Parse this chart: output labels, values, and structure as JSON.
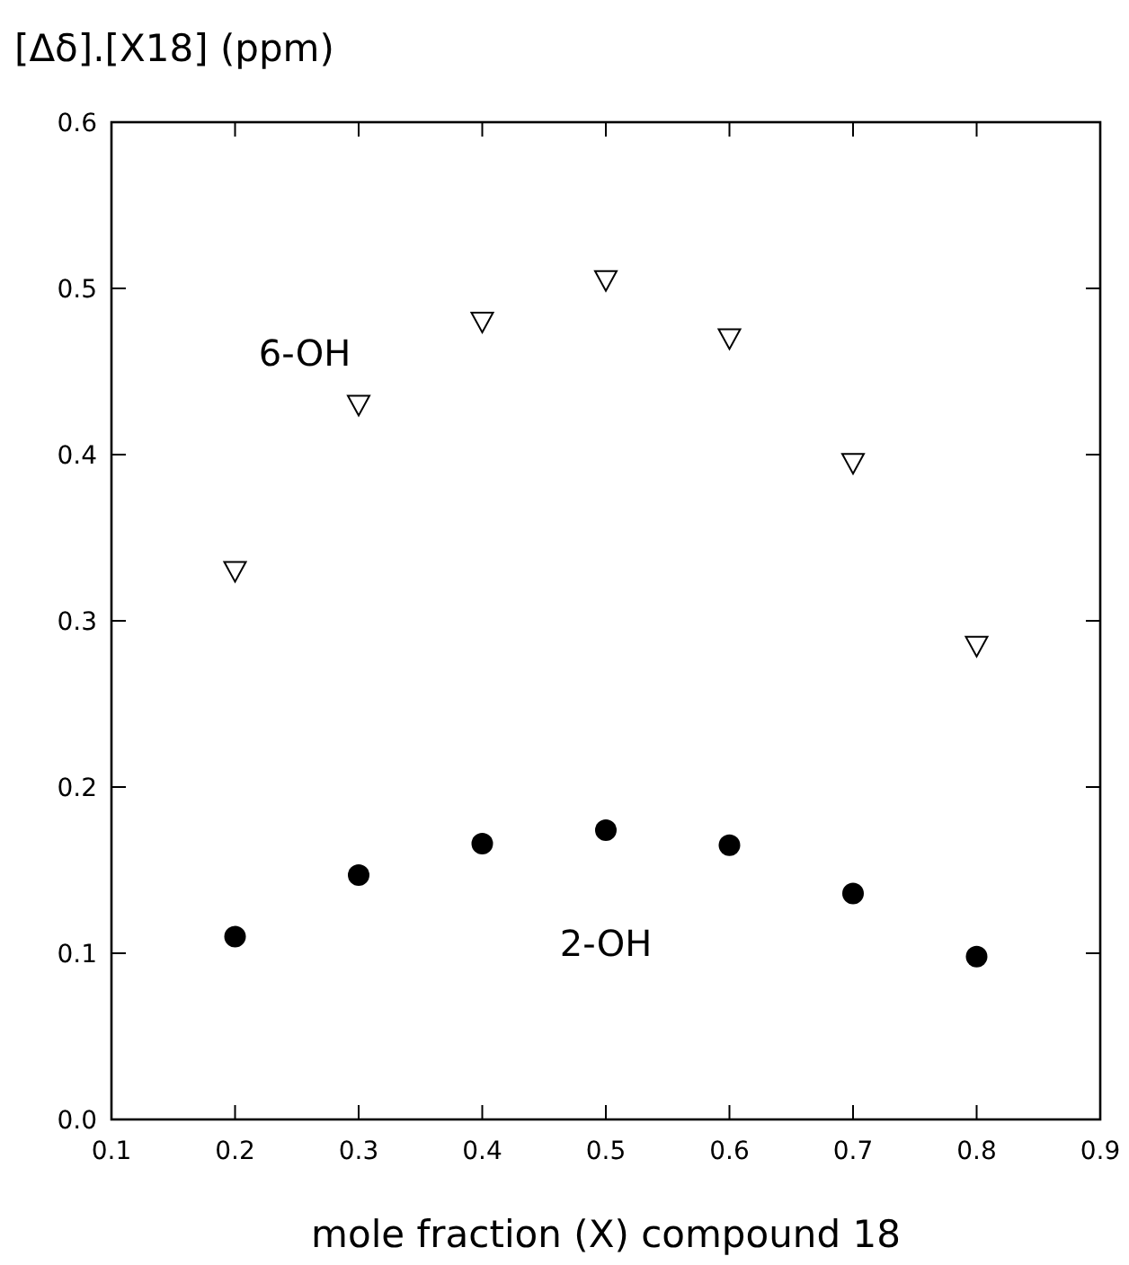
{
  "chart_data": {
    "type": "scatter",
    "title": "[Δδ].[X18] (ppm)",
    "xlabel": "mole fraction (X) compound 18",
    "x": [
      0.2,
      0.3,
      0.4,
      0.5,
      0.6,
      0.7,
      0.8
    ],
    "series": [
      {
        "name": "6-OH",
        "color": "#000000",
        "marker": "triangle",
        "values": [
          0.33,
          0.43,
          0.48,
          0.505,
          0.47,
          0.395,
          0.285
        ]
      },
      {
        "name": "2-OH",
        "color": "#000000",
        "marker": "circle",
        "values": [
          0.11,
          0.147,
          0.166,
          0.174,
          0.165,
          0.136,
          0.098
        ]
      }
    ],
    "xlim": [
      0.1,
      0.9
    ],
    "xticks": [
      {
        "value": 0.1,
        "label": "0.1"
      },
      {
        "value": 0.2,
        "label": "0.2"
      },
      {
        "value": 0.3,
        "label": "0.3"
      },
      {
        "value": 0.4,
        "label": "0.4"
      },
      {
        "value": 0.5,
        "label": "0.5"
      },
      {
        "value": 0.6,
        "label": "0.6"
      },
      {
        "value": 0.7,
        "label": "0.7"
      },
      {
        "value": 0.8,
        "label": "0.8"
      },
      {
        "value": 0.9,
        "label": "0.9"
      }
    ],
    "ylim": [
      0,
      0.6
    ],
    "yticks": [
      {
        "value": 0,
        "label": "0.0"
      },
      {
        "value": 0.1,
        "label": "0.1"
      },
      {
        "value": 0.2,
        "label": "0.2"
      },
      {
        "value": 0.3,
        "label": "0.3"
      },
      {
        "value": 0.4,
        "label": "0.4"
      },
      {
        "value": 0.5,
        "label": "0.5"
      },
      {
        "value": 0.6,
        "label": "0.6"
      }
    ],
    "legend": false,
    "grid": false
  }
}
